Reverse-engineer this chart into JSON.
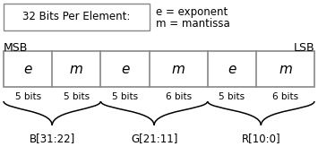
{
  "title_box": "32 Bits Per Element:",
  "legend_line1": "e = exponent",
  "legend_line2": "m = mantissa",
  "msb_label": "MSB",
  "lsb_label": "LSB",
  "cells": [
    "e",
    "m",
    "e",
    "m",
    "e",
    "m"
  ],
  "bit_labels": [
    "5 bits",
    "5 bits",
    "5 bits",
    "6 bits",
    "5 bits",
    "6 bits"
  ],
  "cell_widths_norm": [
    5,
    5,
    5,
    6,
    5,
    6
  ],
  "groups": [
    {
      "label": "B[31:22]",
      "start": 0,
      "end": 1
    },
    {
      "label": "G[21:11]",
      "start": 2,
      "end": 3
    },
    {
      "label": "R[10:0]",
      "start": 4,
      "end": 5
    }
  ],
  "box_color": "#ffffff",
  "border_color": "#888888",
  "text_color": "#000000",
  "bg_color": "#ffffff",
  "fig_width": 3.55,
  "fig_height": 1.73
}
